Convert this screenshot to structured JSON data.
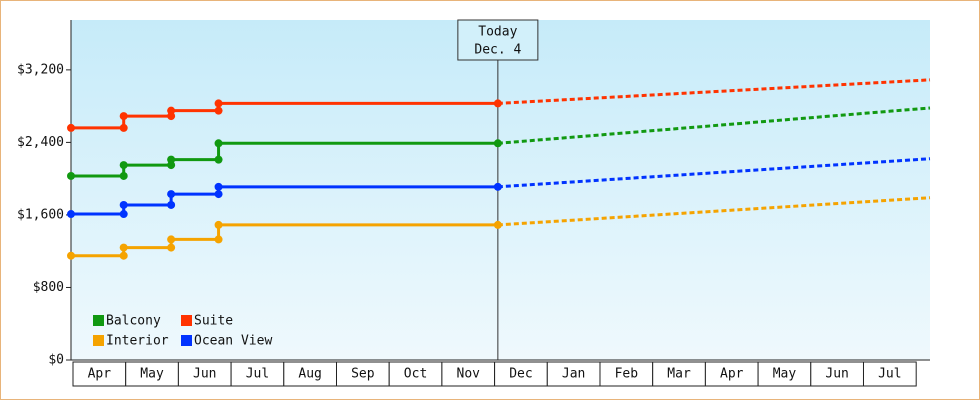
{
  "chart_data": {
    "type": "step-line",
    "x": [
      0,
      1,
      1.9,
      2.8,
      8.1,
      16.3
    ],
    "xlim": [
      0,
      16.3
    ],
    "ylim": [
      0,
      3750
    ],
    "yticks": [
      {
        "value": 0,
        "label": "$0"
      },
      {
        "value": 800,
        "label": "$800"
      },
      {
        "value": 1600,
        "label": "$1,600"
      },
      {
        "value": 2400,
        "label": "$2,400"
      },
      {
        "value": 3200,
        "label": "$3,200"
      }
    ],
    "categories": [
      "Apr",
      "May",
      "Jun",
      "Jul",
      "Aug",
      "Sep",
      "Oct",
      "Nov",
      "Dec",
      "Jan",
      "Feb",
      "Mar",
      "Apr",
      "May",
      "Jun",
      "Jul"
    ],
    "annotation": {
      "text": [
        "Today",
        "Dec. 4"
      ],
      "x": 8.1
    },
    "series": [
      {
        "name": "Balcony",
        "color": "#119911",
        "values": [
          2030,
          2150,
          2210,
          2390,
          2390,
          2780
        ]
      },
      {
        "name": "Suite",
        "color": "#ff3300",
        "values": [
          2560,
          2690,
          2750,
          2830,
          2830,
          3090
        ]
      },
      {
        "name": "Interior",
        "color": "#f5a300",
        "values": [
          1150,
          1240,
          1330,
          1490,
          1490,
          1790
        ]
      },
      {
        "name": "Ocean View",
        "color": "#0033ff",
        "values": [
          1610,
          1710,
          1830,
          1910,
          1910,
          2220
        ]
      }
    ]
  }
}
